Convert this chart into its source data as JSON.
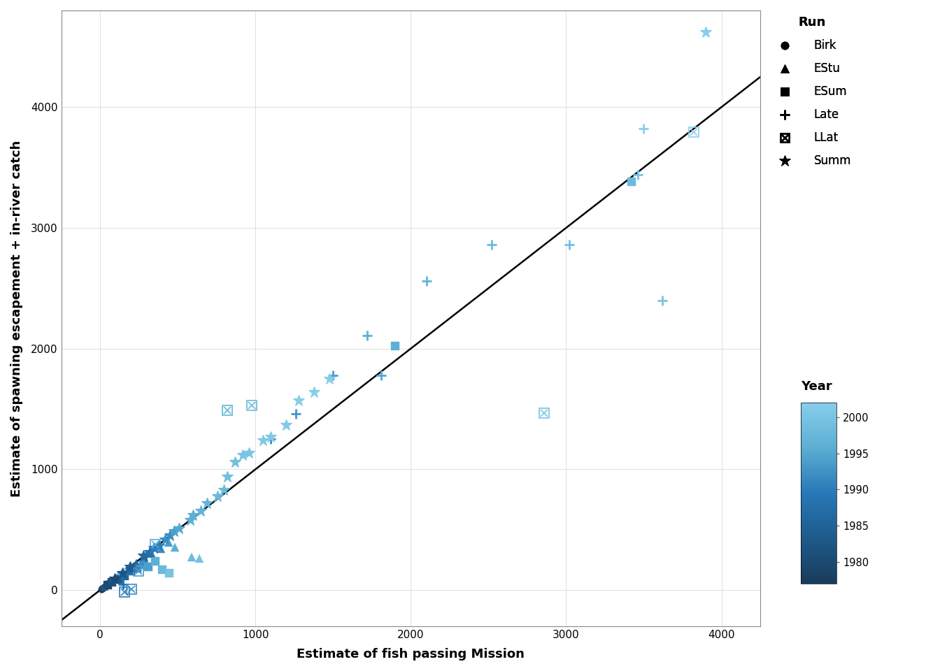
{
  "xlabel": "Estimate of fish passing Mission",
  "ylabel": "Estimate of spawning escapement + in-river catch",
  "xlim": [
    -250,
    4250
  ],
  "ylim": [
    -300,
    4800
  ],
  "xticks": [
    0,
    1000,
    2000,
    3000,
    4000
  ],
  "yticks": [
    0,
    1000,
    2000,
    3000,
    4000
  ],
  "background_color": "#ffffff",
  "grid_color": "#e0e0e0",
  "run_types": [
    "Birk",
    "EStu",
    "ESum",
    "Late",
    "LLat",
    "Summ"
  ],
  "year_min": 1977,
  "year_max": 2002,
  "scatter_data": [
    [
      "Birk",
      8,
      5,
      1977
    ],
    [
      "Birk",
      12,
      10,
      1978
    ],
    [
      "Birk",
      15,
      12,
      1979
    ],
    [
      "Birk",
      18,
      16,
      1980
    ],
    [
      "Birk",
      22,
      20,
      1981
    ],
    [
      "Birk",
      28,
      25,
      1982
    ],
    [
      "Birk",
      32,
      30,
      1983
    ],
    [
      "Birk",
      38,
      35,
      1984
    ],
    [
      "Birk",
      42,
      40,
      1985
    ],
    [
      "Birk",
      48,
      45,
      1986
    ],
    [
      "Birk",
      55,
      52,
      1987
    ],
    [
      "Birk",
      62,
      58,
      1988
    ],
    [
      "Birk",
      70,
      65,
      1989
    ],
    [
      "Birk",
      78,
      72,
      1990
    ],
    [
      "Birk",
      85,
      80,
      1991
    ],
    [
      "Birk",
      92,
      88,
      1992
    ],
    [
      "Birk",
      98,
      93,
      1993
    ],
    [
      "Birk",
      105,
      100,
      1994
    ],
    [
      "Birk",
      112,
      108,
      1995
    ],
    [
      "Birk",
      118,
      113,
      1996
    ],
    [
      "Birk",
      125,
      120,
      1997
    ],
    [
      "Birk",
      132,
      126,
      1998
    ],
    [
      "Birk",
      140,
      134,
      1999
    ],
    [
      "Birk",
      148,
      142,
      2000
    ],
    [
      "Birk",
      155,
      148,
      2001
    ],
    [
      "Birk",
      162,
      155,
      2002
    ],
    [
      "EStu",
      190,
      185,
      1984
    ],
    [
      "EStu",
      235,
      220,
      1986
    ],
    [
      "EStu",
      285,
      270,
      1988
    ],
    [
      "EStu",
      330,
      310,
      1990
    ],
    [
      "EStu",
      390,
      340,
      1992
    ],
    [
      "EStu",
      440,
      395,
      1994
    ],
    [
      "EStu",
      480,
      355,
      1996
    ],
    [
      "EStu",
      590,
      275,
      1998
    ],
    [
      "EStu",
      640,
      260,
      2000
    ],
    [
      "ESum",
      48,
      42,
      1980
    ],
    [
      "ESum",
      78,
      65,
      1982
    ],
    [
      "ESum",
      118,
      88,
      1984
    ],
    [
      "ESum",
      155,
      118,
      1986
    ],
    [
      "ESum",
      198,
      155,
      1988
    ],
    [
      "ESum",
      238,
      182,
      1990
    ],
    [
      "ESum",
      278,
      208,
      1992
    ],
    [
      "ESum",
      308,
      195,
      1994
    ],
    [
      "ESum",
      355,
      238,
      1996
    ],
    [
      "ESum",
      398,
      168,
      1998
    ],
    [
      "ESum",
      445,
      138,
      2000
    ],
    [
      "ESum",
      1900,
      2020,
      1996
    ],
    [
      "ESum",
      3420,
      3380,
      1998
    ],
    [
      "Late",
      45,
      40,
      1980
    ],
    [
      "Late",
      95,
      88,
      1982
    ],
    [
      "Late",
      195,
      185,
      1984
    ],
    [
      "Late",
      295,
      280,
      1986
    ],
    [
      "Late",
      148,
      48,
      1988
    ],
    [
      "Late",
      1100,
      1250,
      1992
    ],
    [
      "Late",
      1260,
      1460,
      1993
    ],
    [
      "Late",
      1500,
      1778,
      1994
    ],
    [
      "Late",
      1808,
      1780,
      1995
    ],
    [
      "Late",
      1720,
      2110,
      1996
    ],
    [
      "Late",
      2100,
      2560,
      1997
    ],
    [
      "Late",
      2520,
      2858,
      1998
    ],
    [
      "Late",
      3020,
      2858,
      1999
    ],
    [
      "Late",
      3620,
      2400,
      2000
    ],
    [
      "Late",
      3500,
      3820,
      2002
    ],
    [
      "Late",
      3460,
      3440,
      2000
    ],
    [
      "LLat",
      155,
      -18,
      1990
    ],
    [
      "LLat",
      200,
      8,
      1992
    ],
    [
      "LLat",
      248,
      158,
      1994
    ],
    [
      "LLat",
      355,
      375,
      1996
    ],
    [
      "LLat",
      818,
      1488,
      1997
    ],
    [
      "LLat",
      978,
      1528,
      1998
    ],
    [
      "LLat",
      2858,
      1468,
      2000
    ],
    [
      "LLat",
      3820,
      3790,
      2002
    ],
    [
      "Summ",
      95,
      95,
      1980
    ],
    [
      "Summ",
      145,
      140,
      1982
    ],
    [
      "Summ",
      195,
      190,
      1984
    ],
    [
      "Summ",
      278,
      282,
      1986
    ],
    [
      "Summ",
      318,
      312,
      1988
    ],
    [
      "Summ",
      348,
      348,
      1990
    ],
    [
      "Summ",
      378,
      368,
      1990
    ],
    [
      "Summ",
      418,
      418,
      1992
    ],
    [
      "Summ",
      448,
      452,
      1992
    ],
    [
      "Summ",
      478,
      488,
      1994
    ],
    [
      "Summ",
      508,
      508,
      1995
    ],
    [
      "Summ",
      578,
      578,
      1996
    ],
    [
      "Summ",
      598,
      622,
      1996
    ],
    [
      "Summ",
      648,
      658,
      1997
    ],
    [
      "Summ",
      688,
      718,
      1997
    ],
    [
      "Summ",
      758,
      778,
      1998
    ],
    [
      "Summ",
      798,
      828,
      1998
    ],
    [
      "Summ",
      818,
      938,
      1999
    ],
    [
      "Summ",
      868,
      1058,
      1999
    ],
    [
      "Summ",
      918,
      1118,
      2000
    ],
    [
      "Summ",
      958,
      1138,
      2000
    ],
    [
      "Summ",
      1048,
      1238,
      2001
    ],
    [
      "Summ",
      1098,
      1268,
      2001
    ],
    [
      "Summ",
      1198,
      1368,
      2001
    ],
    [
      "Summ",
      1278,
      1568,
      2002
    ],
    [
      "Summ",
      1378,
      1638,
      2002
    ],
    [
      "Summ",
      1478,
      1748,
      2002
    ],
    [
      "Summ",
      3900,
      4620,
      2002
    ]
  ]
}
